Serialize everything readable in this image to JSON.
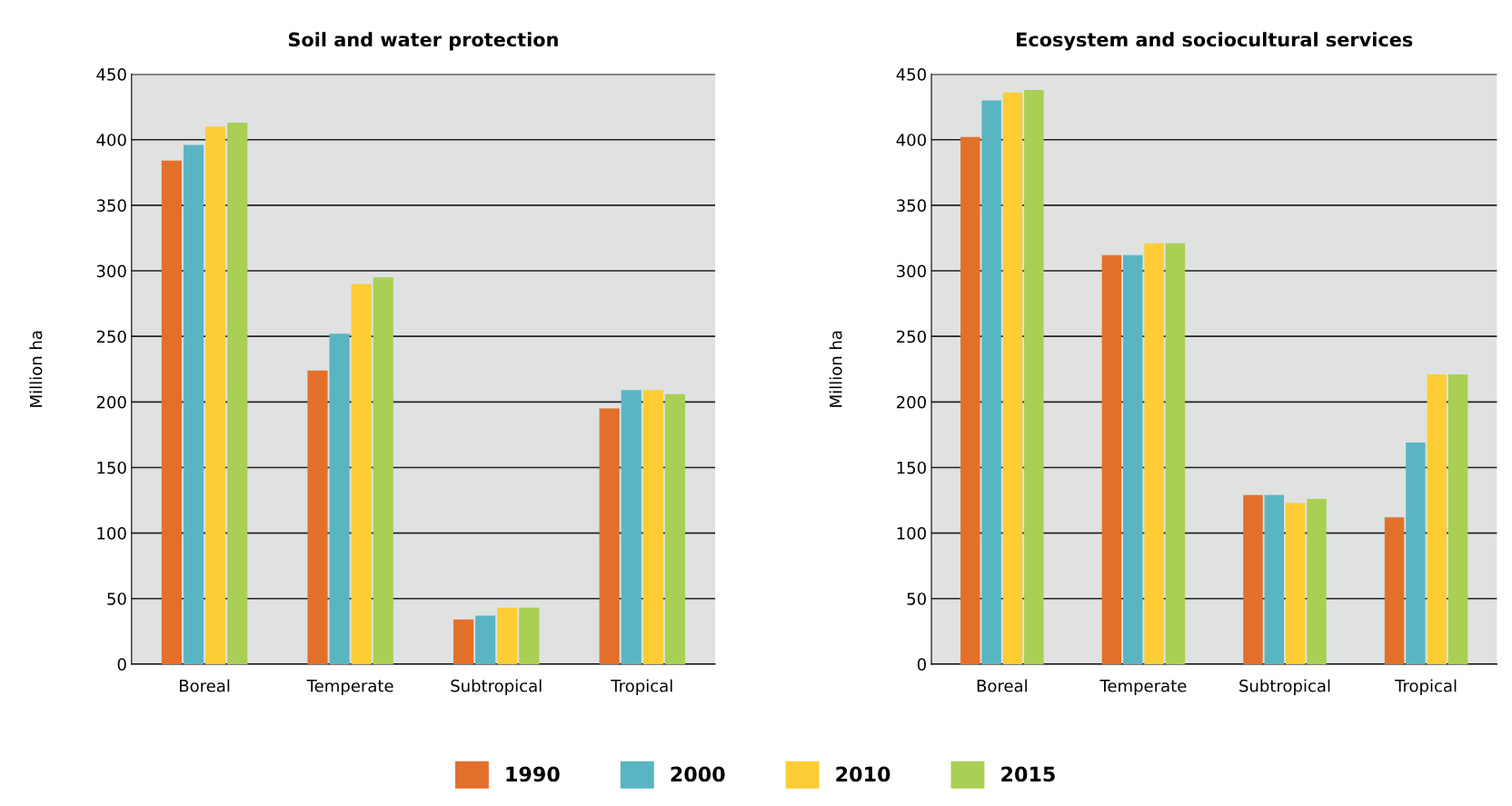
{
  "chart_data": [
    {
      "type": "bar",
      "title": "Soil and water protection",
      "ylabel": "Million ha",
      "categories": [
        "Boreal",
        "Temperate",
        "Subtropical",
        "Tropical"
      ],
      "series": [
        {
          "name": "1990",
          "color": "#e3702a",
          "values": [
            384,
            224,
            34,
            195
          ]
        },
        {
          "name": "2000",
          "color": "#5ab5c3",
          "values": [
            396,
            252,
            37,
            209
          ]
        },
        {
          "name": "2010",
          "color": "#fecd35",
          "values": [
            410,
            290,
            43,
            209
          ]
        },
        {
          "name": "2015",
          "color": "#a9cf54",
          "values": [
            413,
            295,
            43,
            206
          ]
        }
      ],
      "ylim": [
        0,
        450
      ],
      "yticks": [
        0,
        50,
        100,
        150,
        200,
        250,
        300,
        350,
        400,
        450
      ],
      "grid": "y",
      "legend": "bottom"
    },
    {
      "type": "bar",
      "title": "Ecosystem and sociocultural services",
      "ylabel": "Million ha",
      "categories": [
        "Boreal",
        "Temperate",
        "Subtropical",
        "Tropical"
      ],
      "series": [
        {
          "name": "1990",
          "color": "#e3702a",
          "values": [
            402,
            312,
            129,
            112
          ]
        },
        {
          "name": "2000",
          "color": "#5ab5c3",
          "values": [
            430,
            312,
            129,
            169
          ]
        },
        {
          "name": "2010",
          "color": "#fecd35",
          "values": [
            436,
            321,
            123,
            221
          ]
        },
        {
          "name": "2015",
          "color": "#a9cf54",
          "values": [
            438,
            321,
            126,
            221
          ]
        }
      ],
      "ylim": [
        0,
        450
      ],
      "yticks": [
        0,
        50,
        100,
        150,
        200,
        250,
        300,
        350,
        400,
        450
      ],
      "grid": "y"
    }
  ]
}
